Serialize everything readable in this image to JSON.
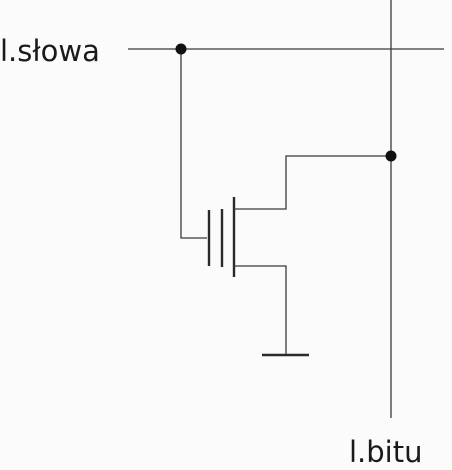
{
  "labels": {
    "word_line": "l.słowa",
    "bit_line": "l.bitu"
  },
  "colors": {
    "background": "#fbfbfb",
    "wire": "#3a3a3a",
    "node": "#111111"
  }
}
